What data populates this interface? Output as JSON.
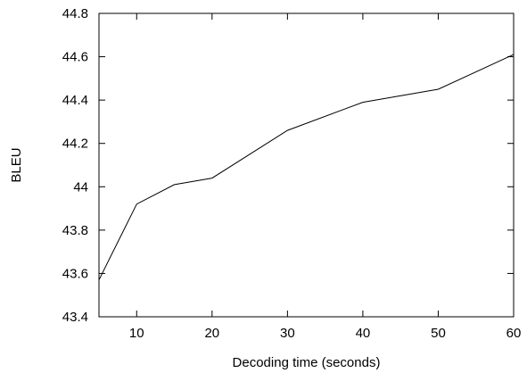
{
  "chart_data": {
    "type": "line",
    "xlabel": "Decoding time (seconds)",
    "ylabel": "BLEU",
    "xlim": [
      5,
      60
    ],
    "ylim": [
      43.4,
      44.8
    ],
    "x_ticks": [
      10,
      20,
      30,
      40,
      50,
      60
    ],
    "x_tick_labels": [
      "10",
      "20",
      "30",
      "40",
      "50",
      "60"
    ],
    "y_ticks": [
      43.4,
      43.6,
      43.8,
      44.0,
      44.2,
      44.4,
      44.6,
      44.8
    ],
    "y_tick_labels": [
      "43.4",
      "43.6",
      "43.8",
      "44",
      "44.2",
      "44.4",
      "44.6",
      "44.8"
    ],
    "grid": false,
    "legend": "none",
    "series": [
      {
        "color": "#000000",
        "x": [
          5,
          10,
          15,
          20,
          30,
          40,
          50,
          60
        ],
        "y": [
          43.57,
          43.92,
          44.01,
          44.04,
          44.26,
          44.39,
          44.45,
          44.61
        ]
      }
    ]
  }
}
